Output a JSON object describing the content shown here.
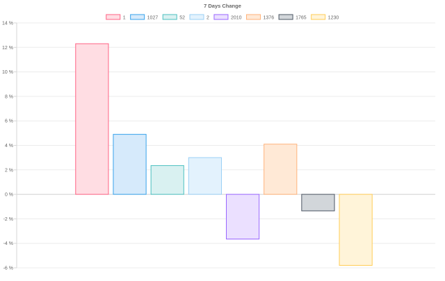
{
  "chart_data": {
    "type": "bar",
    "title": "7 Days Change",
    "xlabel": "",
    "ylabel": "",
    "ylim": [
      -6,
      14
    ],
    "y_tick_step": 2,
    "y_tick_suffix": " %",
    "grid": true,
    "legend_position": "top",
    "series": [
      {
        "name": "1",
        "value": 12.3,
        "color": "#ff6384",
        "fill": "#ffdde3"
      },
      {
        "name": "1027",
        "value": 4.9,
        "color": "#36a2eb",
        "fill": "#d6eafb"
      },
      {
        "name": "52",
        "value": 2.35,
        "color": "#4bc0c0",
        "fill": "#d9f1f1"
      },
      {
        "name": "2",
        "value": 3.0,
        "color": "#9ad0f5",
        "fill": "#e3f2fd"
      },
      {
        "name": "2010",
        "value": -3.65,
        "color": "#9966ff",
        "fill": "#ebe0ff"
      },
      {
        "name": "1376",
        "value": 4.1,
        "color": "#ffb27a",
        "fill": "#ffe9d6"
      },
      {
        "name": "1765",
        "value": -1.35,
        "color": "#4b5563",
        "fill": "#d2d6da"
      },
      {
        "name": "1230",
        "value": -5.8,
        "color": "#ffcd56",
        "fill": "#fff4d9"
      }
    ]
  }
}
